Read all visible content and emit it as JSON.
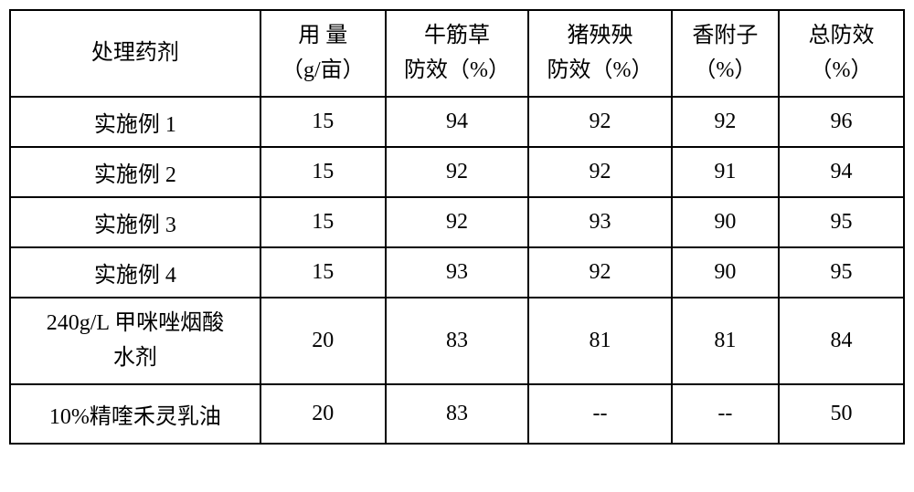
{
  "table": {
    "columns": [
      {
        "label": "处理药剂",
        "width": "28%"
      },
      {
        "label": "用 量\n（g/亩）",
        "width": "14%"
      },
      {
        "label": "牛筋草\n防效（%）",
        "width": "16%"
      },
      {
        "label": "猪殃殃\n防效（%）",
        "width": "16%"
      },
      {
        "label": "香附子\n（%）",
        "width": "12%"
      },
      {
        "label": "总防效\n（%）",
        "width": "14%"
      }
    ],
    "rows": [
      {
        "cells": [
          "实施例 1",
          "15",
          "94",
          "92",
          "92",
          "96"
        ],
        "rowClass": "normal-row"
      },
      {
        "cells": [
          "实施例 2",
          "15",
          "92",
          "92",
          "91",
          "94"
        ],
        "rowClass": "normal-row"
      },
      {
        "cells": [
          "实施例 3",
          "15",
          "92",
          "93",
          "90",
          "95"
        ],
        "rowClass": "normal-row"
      },
      {
        "cells": [
          "实施例 4",
          "15",
          "93",
          "92",
          "90",
          "95"
        ],
        "rowClass": "normal-row"
      },
      {
        "cells": [
          "240g/L 甲咪唑烟酸\n水剂",
          "20",
          "83",
          "81",
          "81",
          "84"
        ],
        "rowClass": "tall-row"
      },
      {
        "cells": [
          "10%精喹禾灵乳油",
          "20",
          "83",
          "--",
          "--",
          "50"
        ],
        "rowClass": "medium-row"
      }
    ],
    "styling": {
      "border_color": "#000000",
      "border_width": 2,
      "background_color": "#ffffff",
      "font_family": "SimSun",
      "header_fontsize": 24,
      "cell_fontsize": 24,
      "text_color": "#000000",
      "text_align": "center"
    }
  }
}
